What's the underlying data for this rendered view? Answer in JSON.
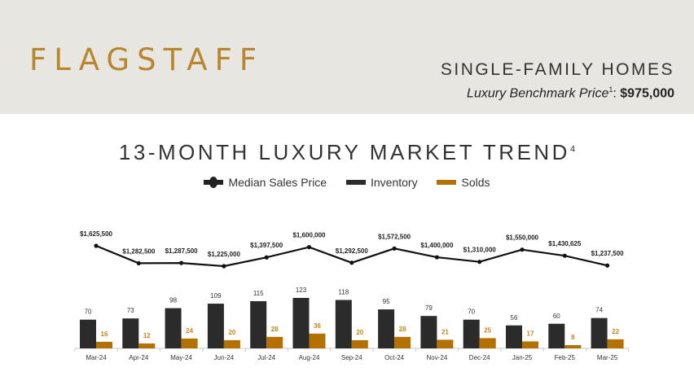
{
  "header": {
    "city": "FLAGSTAFF",
    "segment": "SINGLE-FAMILY HOMES",
    "benchmark_label": "Luxury Benchmark Price",
    "benchmark_sup": "1",
    "benchmark_sep": ":",
    "benchmark_value": "$975,000"
  },
  "chart_data": {
    "type": "bar+line",
    "title": "13-MONTH LUXURY MARKET TREND",
    "title_sup": "4",
    "categories": [
      "Mar-24",
      "Apr-24",
      "May-24",
      "Jun-24",
      "Jul-24",
      "Aug-24",
      "Sep-24",
      "Oct-24",
      "Nov-24",
      "Dec-24",
      "Jan-25",
      "Feb-25",
      "Mar-25"
    ],
    "legend": "top",
    "grid": false,
    "series": [
      {
        "name": "Median Sales Price",
        "type": "line",
        "color": "#111111",
        "values": [
          1625500,
          1282500,
          1287500,
          1225000,
          1397500,
          1600000,
          1292500,
          1572500,
          1400000,
          1310000,
          1550000,
          1430625,
          1237500
        ],
        "labels": [
          "$1,625,500",
          "$1,282,500",
          "$1,287,500",
          "$1,225,000",
          "$1,397,500",
          "$1,600,000",
          "$1,292,500",
          "$1,572,500",
          "$1,400,000",
          "$1,310,000",
          "$1,550,000",
          "$1,430,625",
          "$1,237,500"
        ]
      },
      {
        "name": "Inventory",
        "type": "bar",
        "color": "#2b2b2b",
        "values": [
          70,
          73,
          98,
          109,
          115,
          123,
          118,
          95,
          79,
          70,
          56,
          60,
          74
        ]
      },
      {
        "name": "Solds",
        "type": "bar",
        "color": "#b57100",
        "values": [
          16,
          12,
          24,
          20,
          28,
          36,
          20,
          28,
          21,
          25,
          17,
          8,
          22
        ]
      }
    ]
  }
}
